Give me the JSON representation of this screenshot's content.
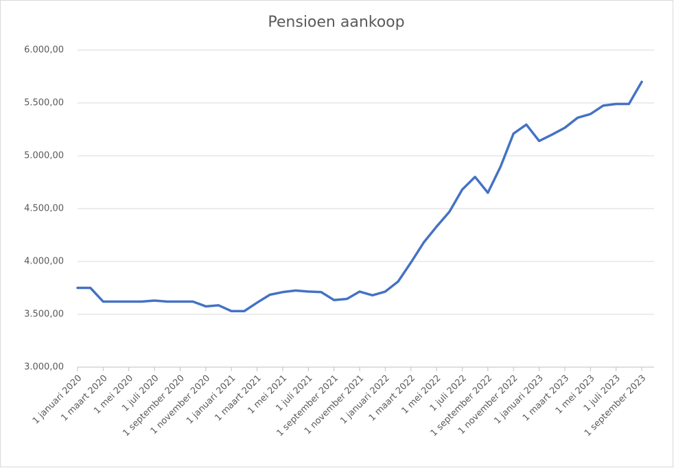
{
  "chart_data": {
    "type": "line",
    "title": "Pensioen aankoop",
    "categories": [
      "1 januari 2020",
      null,
      "1 maart 2020",
      null,
      "1 mei 2020",
      null,
      "1 juli 2020",
      null,
      "1 september 2020",
      null,
      "1 november 2020",
      null,
      "1 januari 2021",
      null,
      "1 maart 2021",
      null,
      "1 mei 2021",
      null,
      "1 juli 2021",
      null,
      "1 september 2021",
      null,
      "1 november 2021",
      null,
      "1 januari 2022",
      null,
      "1 maart 2022",
      null,
      "1 mei 2022",
      null,
      "1 juli 2022",
      null,
      "1 september 2022",
      null,
      "1 november 2022",
      null,
      "1 januari 2023",
      null,
      "1 maart 2023",
      null,
      "1 mei 2023",
      null,
      "1 juli 2023",
      null,
      "1 september 2023"
    ],
    "series": [
      {
        "color": "#4472c4",
        "values": [
          3750,
          3750,
          3620,
          3620,
          3620,
          3620,
          3630,
          3620,
          3620,
          3620,
          3575,
          3585,
          3530,
          3530,
          3610,
          3685,
          3710,
          3725,
          3715,
          3710,
          3635,
          3645,
          3715,
          3680,
          3715,
          3810,
          3990,
          4180,
          4330,
          4470,
          4680,
          4800,
          4650,
          4900,
          5210,
          5295,
          5140,
          5200,
          5265,
          5360,
          5395,
          5475,
          5490,
          5490,
          5700
        ]
      }
    ],
    "ylim": [
      3000,
      6000
    ],
    "yticks": [
      {
        "value": 3000,
        "label": "3.000,00"
      },
      {
        "value": 3500,
        "label": "3.500,00"
      },
      {
        "value": 4000,
        "label": "4.000,00"
      },
      {
        "value": 4500,
        "label": "4.500,00"
      },
      {
        "value": 5000,
        "label": "5.000,00"
      },
      {
        "value": 5500,
        "label": "5.500,00"
      },
      {
        "value": 6000,
        "label": "6.000,00"
      }
    ],
    "grid": true
  }
}
